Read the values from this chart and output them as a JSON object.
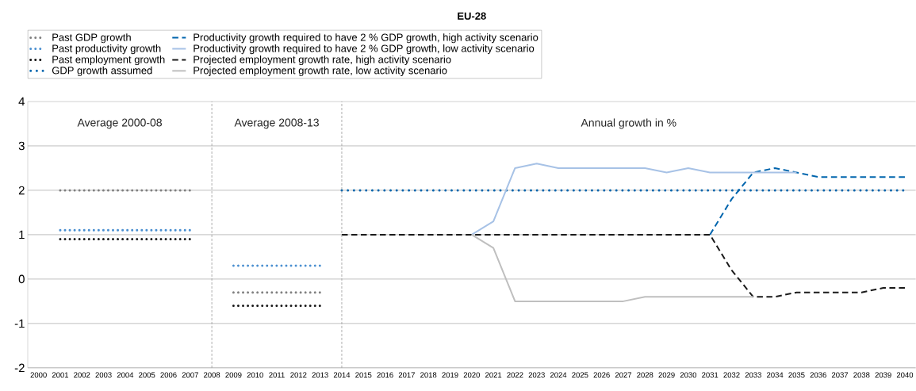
{
  "chart_data": {
    "type": "line",
    "title": "EU-28",
    "annotations": [
      "Average 2000-08",
      "Average 2008-13",
      "Annual growth in %"
    ],
    "categories": [
      "2000",
      "2001",
      "2002",
      "2003",
      "2004",
      "2005",
      "2006",
      "2007",
      "2008",
      "2009",
      "2010",
      "2011",
      "2012",
      "2013",
      "2014",
      "2015",
      "2016",
      "2017",
      "2018",
      "2019",
      "2020",
      "2021",
      "2022",
      "2023",
      "2024",
      "2025",
      "2026",
      "2027",
      "2028",
      "2029",
      "2030",
      "2031",
      "2032",
      "2033",
      "2034",
      "2035",
      "2036",
      "2037",
      "2038",
      "2039",
      "2040"
    ],
    "series": [
      {
        "name": "Past GDP growth",
        "color": "#808080",
        "line_style": "dotted",
        "values": [
          null,
          2,
          2,
          2,
          2,
          2,
          2,
          2,
          null,
          -0.3,
          -0.3,
          -0.3,
          -0.3,
          -0.3,
          null,
          null,
          null,
          null,
          null,
          null,
          null,
          null,
          null,
          null,
          null,
          null,
          null,
          null,
          null,
          null,
          null,
          null,
          null,
          null,
          null,
          null,
          null,
          null,
          null,
          null,
          null
        ]
      },
      {
        "name": "Past productivity growth",
        "color": "#4a8fd0",
        "line_style": "dotted",
        "values": [
          null,
          1.1,
          1.1,
          1.1,
          1.1,
          1.1,
          1.1,
          1.1,
          null,
          0.3,
          0.3,
          0.3,
          0.3,
          0.3,
          null,
          null,
          null,
          null,
          null,
          null,
          null,
          null,
          null,
          null,
          null,
          null,
          null,
          null,
          null,
          null,
          null,
          null,
          null,
          null,
          null,
          null,
          null,
          null,
          null,
          null,
          null
        ]
      },
      {
        "name": "Past employment growth",
        "color": "#1a1a1a",
        "line_style": "dotted",
        "values": [
          null,
          0.9,
          0.9,
          0.9,
          0.9,
          0.9,
          0.9,
          0.9,
          null,
          -0.6,
          -0.6,
          -0.6,
          -0.6,
          -0.6,
          null,
          null,
          null,
          null,
          null,
          null,
          null,
          null,
          null,
          null,
          null,
          null,
          null,
          null,
          null,
          null,
          null,
          null,
          null,
          null,
          null,
          null,
          null,
          null,
          null,
          null,
          null
        ]
      },
      {
        "name": "GDP growth assumed",
        "color": "#0065ad",
        "line_style": "dotted",
        "values": [
          null,
          null,
          null,
          null,
          null,
          null,
          null,
          null,
          null,
          null,
          null,
          null,
          null,
          null,
          2,
          2,
          2,
          2,
          2,
          2,
          2,
          2,
          2,
          2,
          2,
          2,
          2,
          2,
          2,
          2,
          2,
          2,
          2,
          2,
          2,
          2,
          2,
          2,
          2,
          2,
          2
        ]
      },
      {
        "name": "Productivity growth required to have 2 % GDP growth, high activity scenario",
        "color": "#0065ad",
        "line_style": "dashed",
        "values": [
          null,
          null,
          null,
          null,
          null,
          null,
          null,
          null,
          null,
          null,
          null,
          null,
          null,
          null,
          null,
          null,
          null,
          null,
          null,
          null,
          null,
          null,
          null,
          null,
          null,
          null,
          null,
          null,
          null,
          null,
          null,
          1,
          1.8,
          2.4,
          2.5,
          2.4,
          2.3,
          2.3,
          2.3,
          2.3,
          2.3
        ]
      },
      {
        "name": "Productivity growth required to have 2 % GDP growth, low activity scenario",
        "color": "#a7c2e6",
        "line_style": "solid",
        "values": [
          null,
          null,
          null,
          null,
          null,
          null,
          null,
          null,
          null,
          null,
          null,
          null,
          null,
          null,
          null,
          null,
          null,
          null,
          null,
          null,
          1,
          1.3,
          2.5,
          2.6,
          2.5,
          2.5,
          2.5,
          2.5,
          2.5,
          2.4,
          2.5,
          2.4,
          2.4,
          2.4,
          2.4,
          2.4,
          null,
          null,
          null,
          null,
          null
        ]
      },
      {
        "name": "Projected employment growth rate, high activity scenario",
        "color": "#1a1a1a",
        "line_style": "dashed",
        "values": [
          null,
          null,
          null,
          null,
          null,
          null,
          null,
          null,
          null,
          null,
          null,
          null,
          null,
          null,
          1,
          1,
          1,
          1,
          1,
          1,
          1,
          1,
          1,
          1,
          1,
          1,
          1,
          1,
          1,
          1,
          1,
          1,
          0.2,
          -0.4,
          -0.4,
          -0.3,
          -0.3,
          -0.3,
          -0.3,
          -0.2,
          -0.2
        ]
      },
      {
        "name": "Projected employment growth rate, low activity scenario",
        "color": "#bfbfbf",
        "line_style": "solid",
        "values": [
          null,
          null,
          null,
          null,
          null,
          null,
          null,
          null,
          null,
          null,
          null,
          null,
          null,
          null,
          null,
          null,
          null,
          null,
          null,
          null,
          1,
          0.7,
          -0.5,
          -0.5,
          -0.5,
          -0.5,
          -0.5,
          -0.5,
          -0.4,
          -0.4,
          -0.4,
          -0.4,
          -0.4,
          -0.4,
          null,
          null,
          null,
          null,
          null,
          null,
          null
        ]
      }
    ],
    "ylim": [
      -2,
      4
    ],
    "yticks": [
      -2,
      -1,
      0,
      1,
      2,
      3,
      4
    ],
    "grid": "y",
    "legend": "top",
    "ref_lines": [
      {
        "axis": "x",
        "value": "2008",
        "color": "#999999",
        "line_style": "dashed"
      },
      {
        "axis": "x",
        "value": "2014",
        "color": "#999999",
        "line_style": "dashed"
      }
    ]
  }
}
